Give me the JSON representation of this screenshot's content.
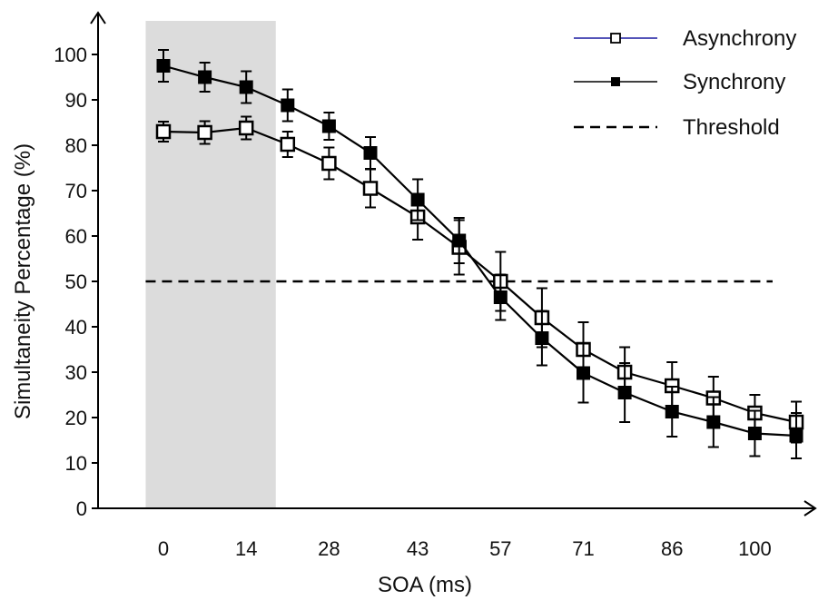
{
  "chart_data": {
    "type": "line",
    "xlabel": "SOA (ms)",
    "ylabel": "Simultaneity Percentage (%)",
    "x_tick_labels": [
      "0",
      "14",
      "28",
      "43",
      "57",
      "71",
      "86",
      "100"
    ],
    "x_tick_values": [
      0,
      14,
      28,
      43,
      57,
      71,
      86,
      100
    ],
    "xlim": [
      -3,
      107
    ],
    "y_ticks": [
      0,
      10,
      20,
      30,
      40,
      50,
      60,
      70,
      80,
      90,
      100
    ],
    "ylim": [
      0,
      107
    ],
    "grid": false,
    "legend_position": "top-right",
    "shaded_region": {
      "x_range": [
        -3,
        19
      ],
      "color": "#dcdcdc"
    },
    "x": [
      0,
      7,
      14,
      21,
      28,
      35,
      43,
      50,
      57,
      64,
      71,
      78,
      86,
      93,
      100,
      107
    ],
    "series": [
      {
        "name": "Asynchrony",
        "marker": "open-square",
        "line_color": "#000000",
        "legend_line_color": "#1a1aa0",
        "values": [
          83,
          82.8,
          83.8,
          80.2,
          76,
          70.5,
          64.2,
          57.5,
          50,
          42,
          35,
          30,
          27,
          24.3,
          21,
          19
        ],
        "errors": [
          2.2,
          2.5,
          2.5,
          2.8,
          3.5,
          4.2,
          5,
          6,
          6.5,
          6.5,
          6,
          5.5,
          5.2,
          4.7,
          4,
          4.5
        ]
      },
      {
        "name": "Synchrony",
        "marker": "filled-square",
        "line_color": "#000000",
        "legend_line_color": "#000000",
        "values": [
          97.5,
          95,
          92.8,
          88.8,
          84.2,
          78.3,
          68,
          59,
          46.5,
          37.5,
          29.8,
          25.5,
          21.3,
          19,
          16.5,
          16
        ],
        "errors": [
          3.5,
          3.2,
          3.5,
          3.5,
          3,
          3.5,
          4.5,
          5,
          5,
          6,
          6.5,
          6.5,
          5.5,
          5.5,
          5,
          5
        ]
      }
    ],
    "threshold": {
      "name": "Threshold",
      "value": 50,
      "style": "dashed",
      "x_range": [
        -3,
        103
      ]
    }
  }
}
